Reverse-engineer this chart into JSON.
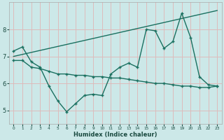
{
  "xlabel": "Humidex (Indice chaleur)",
  "bg_color": "#cce8e8",
  "grid_color": "#ddbbbb",
  "line_color": "#1a7060",
  "xlim": [
    -0.5,
    23.5
  ],
  "ylim": [
    4.5,
    9.0
  ],
  "xticks": [
    0,
    1,
    2,
    3,
    4,
    5,
    6,
    7,
    8,
    9,
    10,
    11,
    12,
    13,
    14,
    15,
    16,
    17,
    18,
    19,
    20,
    21,
    22,
    23
  ],
  "yticks": [
    5,
    6,
    7,
    8
  ],
  "line1_x": [
    0,
    1,
    2,
    3,
    4,
    5,
    6,
    7,
    8,
    9,
    10,
    11,
    12,
    13,
    14,
    15,
    16,
    17,
    18,
    19,
    20,
    21,
    22,
    23
  ],
  "line1_y": [
    7.2,
    7.35,
    6.8,
    6.6,
    5.9,
    5.35,
    4.95,
    5.25,
    5.55,
    5.6,
    5.55,
    6.35,
    6.6,
    6.75,
    6.6,
    8.0,
    7.95,
    7.3,
    7.55,
    8.6,
    7.7,
    6.25,
    5.95,
    5.9
  ],
  "line2_x": [
    0,
    23
  ],
  "line2_y": [
    7.0,
    8.7
  ],
  "line3_x": [
    0,
    1,
    2,
    3,
    4,
    5,
    6,
    7,
    8,
    9,
    10,
    11,
    12,
    13,
    14,
    15,
    16,
    17,
    18,
    19,
    20,
    21,
    22,
    23
  ],
  "line3_y": [
    6.85,
    6.85,
    6.6,
    6.55,
    6.45,
    6.35,
    6.35,
    6.3,
    6.3,
    6.25,
    6.25,
    6.2,
    6.2,
    6.15,
    6.1,
    6.05,
    6.0,
    6.0,
    5.95,
    5.9,
    5.9,
    5.85,
    5.85,
    5.9
  ]
}
